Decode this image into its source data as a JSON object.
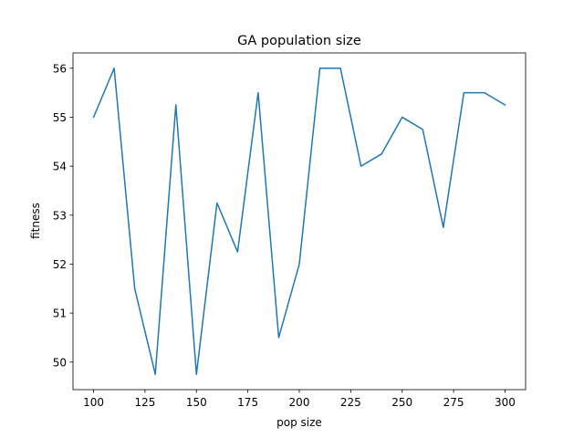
{
  "chart_data": {
    "type": "line",
    "title": "GA population size",
    "xlabel": "pop size",
    "ylabel": "fitness",
    "xlim": [
      90.0,
      310.0
    ],
    "ylim": [
      49.4375,
      56.3125
    ],
    "x_ticks": [
      100,
      125,
      150,
      175,
      200,
      225,
      250,
      275,
      300
    ],
    "y_ticks": [
      50,
      51,
      52,
      53,
      54,
      55,
      56
    ],
    "grid": false,
    "series": [
      {
        "color": "#1f77b4",
        "x": [
          100,
          110,
          120,
          130,
          140,
          150,
          160,
          170,
          180,
          190,
          200,
          210,
          220,
          230,
          240,
          250,
          260,
          270,
          280,
          290,
          300
        ],
        "y": [
          55.0,
          56.0,
          51.5,
          49.75,
          55.25,
          49.75,
          53.25,
          52.25,
          55.5,
          50.5,
          52.0,
          56.0,
          56.0,
          54.0,
          54.25,
          55.0,
          54.75,
          52.75,
          55.5,
          55.5,
          55.25
        ]
      }
    ]
  }
}
